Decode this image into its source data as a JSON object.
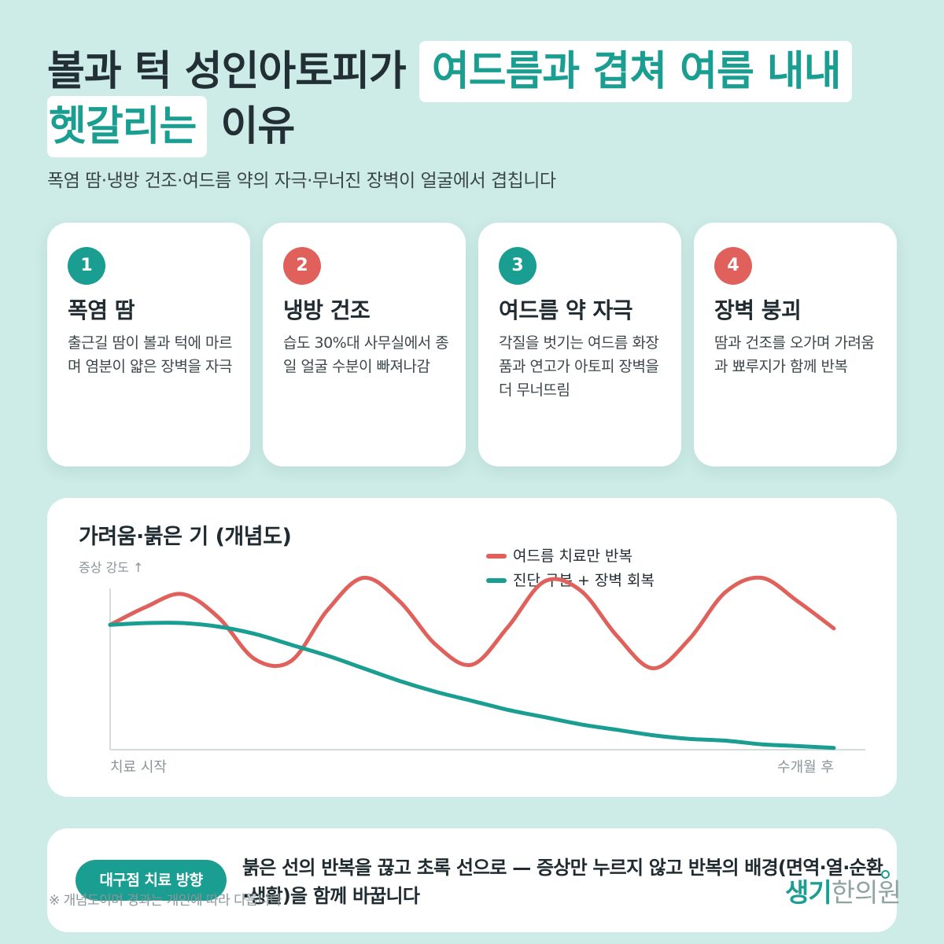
{
  "title": {
    "part1": "볼과 턱 성인아토피가",
    "highlight1": "여드름과 겹쳐 여름 내내",
    "highlight2": "헷갈리는",
    "part2": "이유"
  },
  "subtitle": "폭염 땀·냉방 건조·여드름 약의 자극·무너진 장벽이 얼굴에서 겹칩니다",
  "colors": {
    "teal": "#1a9e91",
    "red": "#e0615c",
    "background": "#cdebe7"
  },
  "cards": [
    {
      "number": "1",
      "title": "폭염 땀",
      "desc": "출근길 땀이 볼과 턱에 마르며 염분이 얇은 장벽을 자극",
      "color": "#1a9e91"
    },
    {
      "number": "2",
      "title": "냉방 건조",
      "desc": "습도 30%대 사무실에서 종일 얼굴 수분이 빠져나감",
      "color": "#e0615c"
    },
    {
      "number": "3",
      "title": "여드름 약 자극",
      "desc": "각질을 벗기는 여드름 화장품과 연고가 아토피 장벽을 더 무너뜨림",
      "color": "#1a9e91"
    },
    {
      "number": "4",
      "title": "장벽 붕괴",
      "desc": "땀과 건조를 오가며 가려움과 뾰루지가 함께 반복",
      "color": "#e0615c"
    }
  ],
  "chart_data": {
    "type": "line",
    "title": "가려움·붉은 기 (개념도)",
    "ylabel": "증상 강도 ↑",
    "x_start_label": "치료 시작",
    "x_end_label": "수개월 후",
    "ylim": [
      0,
      100
    ],
    "grid": false,
    "legend_position": "top-center",
    "series": [
      {
        "name": "여드름 치료만 반복",
        "color": "#e0615c",
        "x": [
          0,
          0.5,
          1.0,
          1.5,
          2.0,
          2.5,
          3.0,
          3.5,
          4.0,
          4.5,
          5.0,
          5.5,
          6.0,
          6.5,
          7.0,
          7.5,
          8.0,
          8.5,
          9.0,
          9.5,
          10.0
        ],
        "values": [
          69,
          79,
          86,
          73,
          50,
          49,
          77,
          95,
          82,
          58,
          47,
          68,
          93,
          88,
          63,
          45,
          61,
          87,
          95,
          82,
          67
        ]
      },
      {
        "name": "진단 구분 + 장벽 회복",
        "color": "#1a9e91",
        "x": [
          0,
          0.5,
          1.0,
          1.5,
          2.0,
          2.5,
          3.0,
          3.5,
          4.0,
          4.5,
          5.0,
          5.5,
          6.0,
          6.5,
          7.0,
          7.5,
          8.0,
          8.5,
          9.0,
          9.5,
          10.0
        ],
        "values": [
          69,
          70,
          70,
          68,
          64,
          58,
          52,
          45,
          38,
          32,
          27,
          22,
          18,
          14,
          11,
          8,
          6,
          5,
          3,
          2,
          1
        ]
      }
    ]
  },
  "bottom": {
    "pill": "대구점 치료 방향",
    "conclusion": "붉은 선의 반복을 끊고 초록 선으로 — 증상만 누르지 않고 반복의 배경(면역·열·순환·생활)을 함께 바꿉니다",
    "note": "※ 개념도이며 경과는 개인에 따라 다릅니다",
    "logo_a": "생기",
    "logo_b": "한의원"
  }
}
